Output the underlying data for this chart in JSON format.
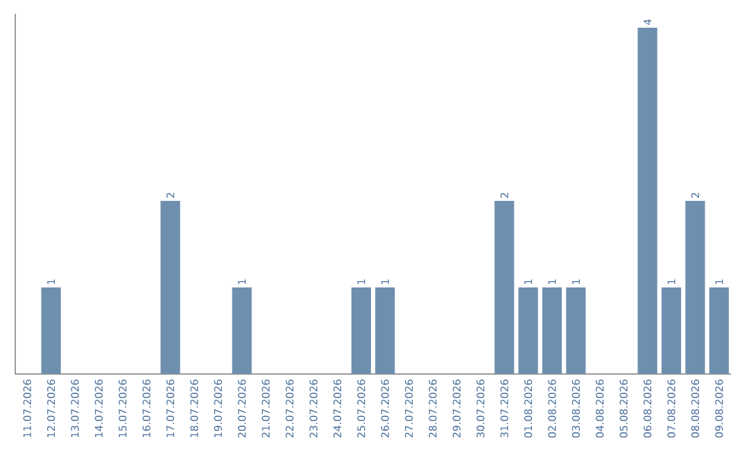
{
  "chart_data": {
    "type": "bar",
    "color": "#6f8fae",
    "categories": [
      "11.07.2026",
      "12.07.2026",
      "13.07.2026",
      "14.07.2026",
      "15.07.2026",
      "16.07.2026",
      "17.07.2026",
      "18.07.2026",
      "19.07.2026",
      "20.07.2026",
      "21.07.2026",
      "22.07.2026",
      "23.07.2026",
      "24.07.2026",
      "25.07.2026",
      "26.07.2026",
      "27.07.2026",
      "28.07.2026",
      "29.07.2026",
      "30.07.2026",
      "31.07.2026",
      "01.08.2026",
      "02.08.2026",
      "03.08.2026",
      "04.08.2026",
      "05.08.2026",
      "06.08.2026",
      "07.08.2026",
      "08.08.2026",
      "09.08.2026"
    ],
    "values": [
      0,
      1,
      0,
      0,
      0,
      0,
      2,
      0,
      0,
      1,
      0,
      0,
      0,
      0,
      1,
      1,
      0,
      0,
      0,
      0,
      2,
      1,
      1,
      1,
      0,
      0,
      4,
      1,
      2,
      1
    ],
    "value_labels": [
      null,
      "1",
      null,
      null,
      null,
      null,
      "2",
      null,
      null,
      "1",
      null,
      null,
      null,
      null,
      "1",
      "1",
      null,
      null,
      null,
      null,
      "2",
      "1",
      "1",
      "1",
      null,
      null,
      "4",
      "1",
      "2",
      "1"
    ],
    "tick_labels": "x"
  }
}
